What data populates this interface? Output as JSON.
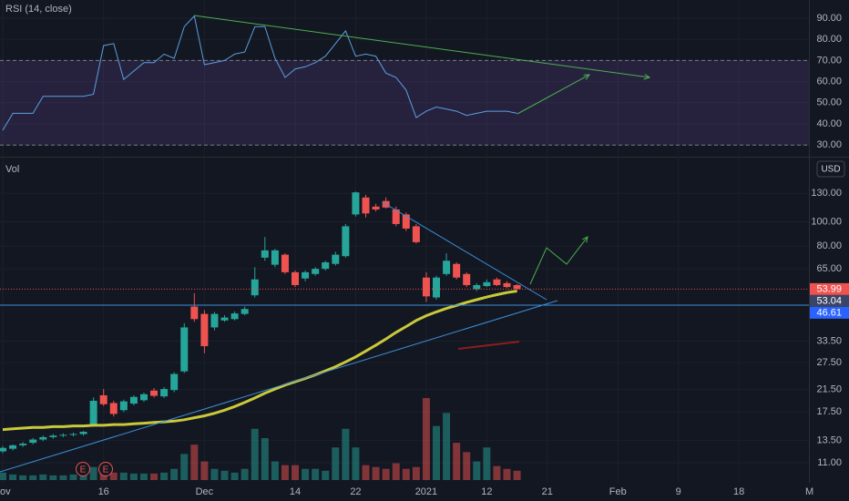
{
  "chart_data": {
    "type": "candlestick",
    "volume_label": "Vol",
    "currency": "USD",
    "events": [
      "E",
      "E"
    ],
    "log_scale": true,
    "grid": true,
    "up_color": "#26a69a",
    "down_color": "#ef5350",
    "categories": [
      "ov",
      null,
      null,
      null,
      null,
      null,
      null,
      null,
      null,
      null,
      "16",
      null,
      null,
      null,
      null,
      null,
      null,
      null,
      null,
      null,
      "Dec",
      null,
      null,
      null,
      null,
      null,
      null,
      null,
      null,
      "14",
      null,
      null,
      null,
      null,
      null,
      "22",
      null,
      null,
      null,
      null,
      null,
      null,
      "2021",
      null,
      null,
      null,
      null,
      null,
      "12",
      null,
      null,
      null,
      null,
      null,
      "21",
      null,
      null,
      null,
      null,
      null,
      null,
      "Feb",
      null,
      null,
      null,
      null,
      null,
      "9",
      null,
      null,
      null,
      null,
      null,
      "18",
      null,
      null,
      null,
      null,
      null,
      null,
      "M"
    ],
    "open": [
      12.2,
      12.5,
      12.9,
      13.2,
      13.6,
      13.9,
      14.1,
      14.2,
      14.3,
      15.5,
      20.4,
      19.0,
      17.8,
      18.9,
      19.5,
      21.3,
      20.2,
      21.4,
      25.4,
      46.0,
      43.0,
      38.0,
      40.5,
      41.0,
      43.0,
      51.0,
      72.0,
      67.5,
      74.0,
      63.0,
      59.5,
      62.0,
      65.0,
      68.0,
      73.0,
      107.0,
      125.0,
      115.0,
      121.0,
      112.0,
      107.0,
      96.0,
      60.0,
      50.0,
      62.0,
      68.0,
      62.0,
      54.0,
      55.5,
      59.0,
      57.0,
      56.0,
      null,
      null,
      null,
      null,
      null,
      null,
      null,
      null,
      null,
      null,
      null,
      null,
      null,
      null,
      null,
      null,
      null,
      null,
      null,
      null,
      null,
      null,
      null,
      null,
      null,
      null,
      null,
      null,
      null
    ],
    "high": [
      12.8,
      13.0,
      13.3,
      13.8,
      14.1,
      14.3,
      14.4,
      14.5,
      14.7,
      20.0,
      21.6,
      19.4,
      19.6,
      20.4,
      20.9,
      21.8,
      22.0,
      25.2,
      39.5,
      52.0,
      44.5,
      43.8,
      42.5,
      44.0,
      46.0,
      66.0,
      87.0,
      78.0,
      75.0,
      64.0,
      64.0,
      66.0,
      70.0,
      76.0,
      98.0,
      132.0,
      128.0,
      118.0,
      125.0,
      115.0,
      109.0,
      98.0,
      63.0,
      61.0,
      75.0,
      69.0,
      63.0,
      57.0,
      59.0,
      60.0,
      58.0,
      56.5,
      null,
      null,
      null,
      null,
      null,
      null,
      null,
      null,
      null,
      null,
      null,
      null,
      null,
      null,
      null,
      null,
      null,
      null,
      null,
      null,
      null,
      null,
      null,
      null,
      null,
      null,
      null,
      null,
      null
    ],
    "low": [
      12.0,
      12.3,
      12.7,
      13.0,
      13.4,
      13.7,
      13.9,
      14.0,
      14.1,
      15.3,
      18.5,
      16.8,
      17.5,
      18.6,
      19.2,
      20.0,
      19.9,
      21.0,
      25.0,
      40.0,
      30.0,
      37.0,
      40.0,
      40.5,
      42.5,
      50.0,
      70.0,
      66.0,
      62.0,
      55.0,
      58.0,
      61.0,
      64.0,
      67.0,
      72.0,
      105.0,
      104.0,
      110.0,
      113.0,
      96.0,
      92.0,
      82.0,
      48.0,
      49.0,
      61.0,
      59.0,
      55.0,
      53.0,
      55.0,
      55.5,
      54.5,
      53.5,
      null,
      null,
      null,
      null,
      null,
      null,
      null,
      null,
      null,
      null,
      null,
      null,
      null,
      null,
      null,
      null,
      null,
      null,
      null,
      null,
      null,
      null,
      null,
      null,
      null,
      null,
      null,
      null,
      null
    ],
    "close": [
      12.6,
      12.9,
      13.1,
      13.6,
      13.9,
      14.1,
      14.2,
      14.3,
      14.6,
      19.4,
      18.8,
      17.2,
      19.3,
      20.1,
      20.6,
      20.3,
      21.6,
      24.8,
      38.0,
      41.0,
      32.0,
      43.0,
      41.6,
      43.2,
      45.0,
      59.0,
      77.0,
      77.0,
      63.0,
      56.0,
      63.0,
      65.0,
      69.0,
      74.0,
      96.0,
      131.0,
      108.0,
      112.0,
      114.0,
      98.0,
      94.0,
      83.0,
      50.5,
      60.0,
      70.0,
      60.0,
      56.0,
      56.0,
      57.5,
      56.0,
      55.0,
      53.99,
      null,
      null,
      null,
      null,
      null,
      null,
      null,
      null,
      null,
      null,
      null,
      null,
      null,
      null,
      null,
      null,
      null,
      null,
      null,
      null,
      null,
      null,
      null,
      null,
      null,
      null,
      null,
      null,
      null
    ],
    "volume": [
      8,
      6,
      5,
      5,
      6,
      5,
      5,
      6,
      7,
      14,
      10,
      8,
      8,
      7,
      7,
      7,
      8,
      12,
      28,
      38,
      20,
      12,
      10,
      8,
      12,
      55,
      45,
      20,
      16,
      16,
      12,
      12,
      10,
      35,
      55,
      35,
      16,
      14,
      12,
      18,
      12,
      14,
      88,
      58,
      72,
      40,
      30,
      20,
      35,
      15,
      12,
      10,
      null,
      null,
      null,
      null,
      null,
      null,
      null,
      null,
      null,
      null,
      null,
      null,
      null,
      null,
      null,
      null,
      null,
      null,
      null,
      null,
      null,
      null,
      null,
      null,
      null,
      null,
      null,
      null,
      null
    ],
    "ma": {
      "color": "#c9c93a",
      "values": [
        14.9,
        15.0,
        15.1,
        15.2,
        15.2,
        15.3,
        15.3,
        15.4,
        15.4,
        15.5,
        15.5,
        15.6,
        15.6,
        15.7,
        15.8,
        15.9,
        16.0,
        16.1,
        16.3,
        16.6,
        16.9,
        17.3,
        17.8,
        18.4,
        19.1,
        19.9,
        20.8,
        21.6,
        22.4,
        23.1,
        23.8,
        24.6,
        25.5,
        26.5,
        27.7,
        29.0,
        30.6,
        32.3,
        34.2,
        36.3,
        38.3,
        40.5,
        42.3,
        43.8,
        45.2,
        46.5,
        47.8,
        49.0,
        50.2,
        51.3,
        52.3,
        53.04,
        null,
        null,
        null,
        null,
        null,
        null,
        null,
        null,
        null,
        null,
        null,
        null,
        null,
        null,
        null,
        null,
        null,
        null,
        null,
        null,
        null,
        null,
        null,
        null,
        null,
        null,
        null,
        null,
        null
      ]
    },
    "levels": [
      {
        "value": 53.99,
        "label": "53.99",
        "color": "#ef5350",
        "style": "dotted"
      },
      {
        "value": 53.04,
        "label": "53.04",
        "color": "#3a4466",
        "style": "none"
      },
      {
        "value": 46.61,
        "label": "46.61",
        "color": "#2962ff",
        "style": "solid"
      }
    ],
    "ylim": [
      9.15,
      172.8
    ],
    "yticks": [
      {
        "value": 130,
        "label": "130.00"
      },
      {
        "value": 100,
        "label": "100.00"
      },
      {
        "value": 80,
        "label": "80.00"
      },
      {
        "value": 65,
        "label": "65.00"
      },
      {
        "value": 33.5,
        "label": "33.50"
      },
      {
        "value": 27.5,
        "label": "27.50"
      },
      {
        "value": 21.5,
        "label": "21.50"
      },
      {
        "value": 17.5,
        "label": "17.50"
      },
      {
        "value": 13.5,
        "label": "13.50"
      },
      {
        "value": 11,
        "label": "11.00"
      }
    ],
    "rsi": {
      "title": "RSI (14, close)",
      "color": "#5aa0e0",
      "band": [
        30,
        70
      ],
      "band_color": "#7e57c2",
      "values": [
        37,
        45,
        45,
        45,
        53,
        53,
        53,
        53,
        53,
        54,
        77,
        78,
        61,
        65,
        69,
        69,
        73,
        71,
        86,
        91,
        68,
        69,
        70,
        73,
        74,
        86,
        86,
        71,
        62,
        66,
        67,
        69,
        72,
        78,
        84,
        72,
        73,
        72,
        64,
        62,
        56,
        43,
        46,
        48,
        47,
        46,
        44,
        45,
        46,
        46,
        46,
        45,
        null,
        null,
        null,
        null,
        null,
        null,
        null,
        null,
        null,
        null,
        null,
        null,
        null,
        null,
        null,
        null,
        null,
        null,
        null,
        null,
        null,
        null,
        null,
        null,
        null,
        null,
        null,
        null,
        null
      ],
      "ylim": [
        24.5,
        98.6
      ],
      "yticks": [
        {
          "value": 90,
          "label": "90.00"
        },
        {
          "value": 80,
          "label": "80.00"
        },
        {
          "value": 70,
          "label": "70.00"
        },
        {
          "value": 60,
          "label": "60.00"
        },
        {
          "value": 50,
          "label": "50.00"
        },
        {
          "value": 40,
          "label": "40.00"
        },
        {
          "value": 30,
          "label": "30.00"
        }
      ]
    }
  }
}
